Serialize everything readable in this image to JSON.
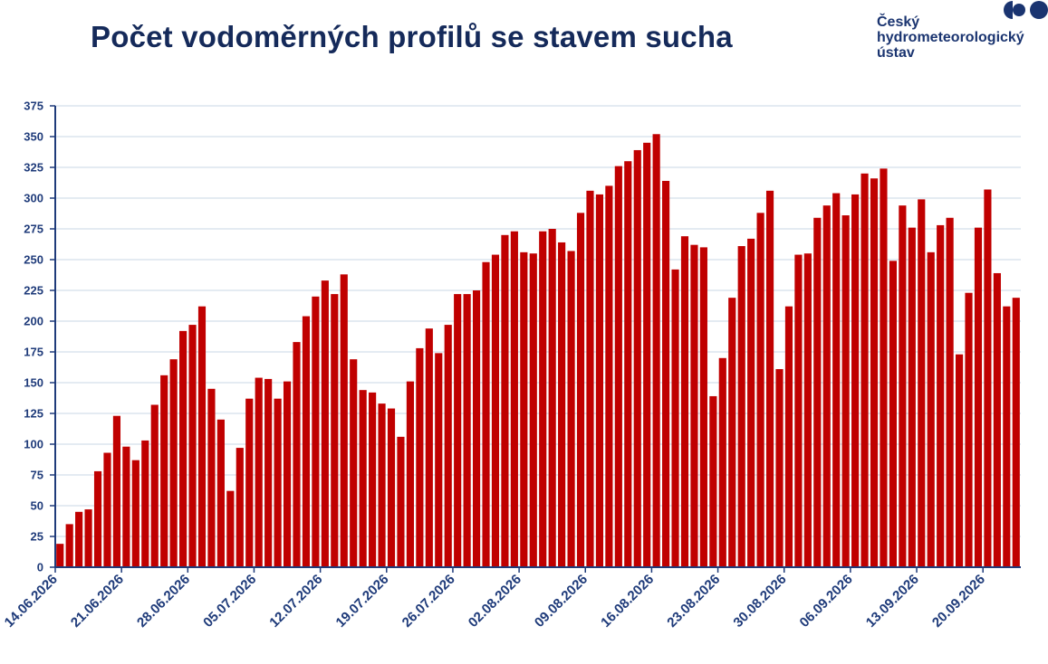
{
  "header": {
    "title": "Počet vodoměrných profilů se stavem sucha"
  },
  "logo": {
    "line1": "Český",
    "line2": "hydrometeorologický",
    "line3": "ústav",
    "color": "#1a3470"
  },
  "colors": {
    "bar": "#c00000",
    "axis": "#1f3b7a",
    "grid": "#c9d7e6",
    "title": "#152a5a"
  },
  "chart_data": {
    "type": "bar",
    "title": "Počet vodoměrných profilů se stavem sucha",
    "xlabel": "",
    "ylabel": "",
    "ylim": [
      0,
      375
    ],
    "yticks": [
      0,
      25,
      50,
      75,
      100,
      125,
      150,
      175,
      200,
      225,
      250,
      275,
      300,
      325,
      350,
      375
    ],
    "grid": true,
    "legend": "none",
    "x_tick_labels": [
      "14.06.2026",
      "21.06.2026",
      "28.06.2026",
      "05.07.2026",
      "12.07.2026",
      "19.07.2026",
      "26.07.2026",
      "02.08.2026",
      "09.08.2026",
      "16.08.2026",
      "23.08.2026",
      "30.08.2026",
      "06.09.2026",
      "13.09.2026",
      "20.09.2026"
    ],
    "start_date": "14.06.2026",
    "values": [
      19,
      35,
      45,
      47,
      78,
      93,
      123,
      98,
      87,
      103,
      132,
      156,
      169,
      192,
      197,
      212,
      145,
      120,
      62,
      97,
      137,
      154,
      153,
      137,
      151,
      183,
      204,
      220,
      233,
      222,
      238,
      169,
      144,
      142,
      133,
      129,
      106,
      151,
      178,
      194,
      174,
      197,
      222,
      222,
      225,
      248,
      254,
      270,
      273,
      256,
      255,
      273,
      275,
      264,
      257,
      288,
      306,
      303,
      310,
      326,
      330,
      339,
      345,
      352,
      314,
      242,
      269,
      262,
      260,
      139,
      170,
      219,
      261,
      267,
      288,
      306,
      161,
      212,
      254,
      255,
      284,
      294,
      304,
      286,
      303,
      320,
      316,
      324,
      249,
      294,
      276,
      299,
      256,
      278,
      284,
      173,
      223,
      276,
      307,
      239,
      212,
      219
    ]
  }
}
